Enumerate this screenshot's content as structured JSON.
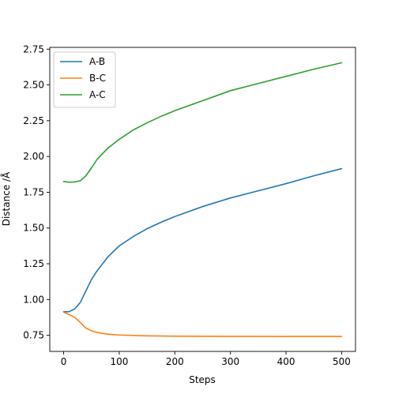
{
  "chart_data": {
    "type": "line",
    "title": "",
    "xlabel": "Steps",
    "ylabel": "Distance /Å",
    "xlim": [
      -25,
      525
    ],
    "ylim": [
      0.6375,
      2.7625
    ],
    "xticks": [
      0,
      100,
      200,
      300,
      400,
      500
    ],
    "yticks": [
      0.75,
      1.0,
      1.25,
      1.5,
      1.75,
      2.0,
      2.25,
      2.5,
      2.75
    ],
    "ytick_labels": [
      "0.75",
      "1.00",
      "1.25",
      "1.50",
      "1.75",
      "2.00",
      "2.25",
      "2.50",
      "2.75"
    ],
    "grid": false,
    "legend": "top-left",
    "series": [
      {
        "name": "A-B",
        "color": "#1f77b4",
        "points": [
          [
            0,
            0.915
          ],
          [
            10,
            0.915
          ],
          [
            20,
            0.935
          ],
          [
            30,
            0.98
          ],
          [
            40,
            1.06
          ],
          [
            50,
            1.14
          ],
          [
            60,
            1.2
          ],
          [
            80,
            1.3
          ],
          [
            100,
            1.375
          ],
          [
            125,
            1.44
          ],
          [
            150,
            1.495
          ],
          [
            175,
            1.54
          ],
          [
            200,
            1.58
          ],
          [
            250,
            1.65
          ],
          [
            300,
            1.71
          ],
          [
            350,
            1.76
          ],
          [
            400,
            1.81
          ],
          [
            450,
            1.865
          ],
          [
            500,
            1.915
          ]
        ]
      },
      {
        "name": "B-C",
        "color": "#ff7f0e",
        "points": [
          [
            0,
            0.912
          ],
          [
            10,
            0.895
          ],
          [
            20,
            0.875
          ],
          [
            30,
            0.84
          ],
          [
            40,
            0.8
          ],
          [
            50,
            0.782
          ],
          [
            60,
            0.77
          ],
          [
            80,
            0.758
          ],
          [
            100,
            0.752
          ],
          [
            150,
            0.746
          ],
          [
            200,
            0.744
          ],
          [
            300,
            0.743
          ],
          [
            400,
            0.742
          ],
          [
            500,
            0.742
          ]
        ]
      },
      {
        "name": "A-C",
        "color": "#2ca02c",
        "points": [
          [
            0,
            1.825
          ],
          [
            10,
            1.82
          ],
          [
            20,
            1.822
          ],
          [
            30,
            1.83
          ],
          [
            40,
            1.865
          ],
          [
            50,
            1.92
          ],
          [
            60,
            1.98
          ],
          [
            80,
            2.06
          ],
          [
            100,
            2.12
          ],
          [
            125,
            2.185
          ],
          [
            150,
            2.235
          ],
          [
            175,
            2.28
          ],
          [
            200,
            2.32
          ],
          [
            250,
            2.39
          ],
          [
            300,
            2.46
          ],
          [
            350,
            2.51
          ],
          [
            400,
            2.56
          ],
          [
            450,
            2.61
          ],
          [
            500,
            2.655
          ]
        ]
      }
    ]
  }
}
